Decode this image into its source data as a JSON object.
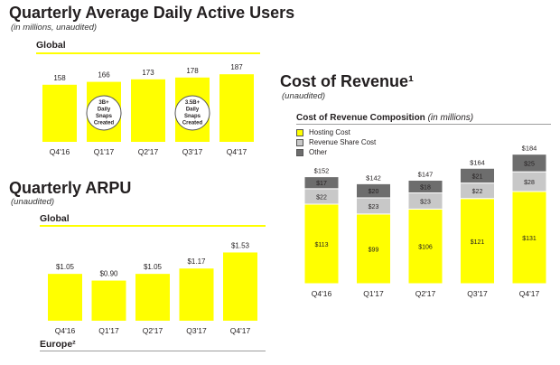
{
  "dau": {
    "title": "Quarterly Average Daily Active Users",
    "subtitle": "(in millions, unaudited)",
    "section": "Global"
  },
  "arpu": {
    "title": "Quarterly ARPU",
    "subtitle": "(unaudited)",
    "section": "Global",
    "section2": "Europe²"
  },
  "cor": {
    "title": "Cost of Revenue¹",
    "subtitle": "(unaudited)",
    "section": "Cost of Revenue Composition",
    "section_units": " (in millions)"
  },
  "colors": {
    "yellow": "#ffff00",
    "light_gray": "#c8c8c8",
    "dark_gray": "#6d6d6d",
    "rule_gray": "#9e9e9e"
  },
  "chart_data": [
    {
      "id": "dau",
      "type": "bar",
      "categories": [
        "Q4'16",
        "Q1'17",
        "Q2'17",
        "Q3'17",
        "Q4'17"
      ],
      "values": [
        158,
        166,
        173,
        178,
        187
      ],
      "labels": [
        "158",
        "166",
        "173",
        "178",
        "187"
      ],
      "annotations": [
        {
          "category": "Q1'17",
          "lines": [
            "3B+",
            "Daily",
            "Snaps",
            "Created"
          ]
        },
        {
          "category": "Q3'17",
          "lines": [
            "3.5B+",
            "Daily",
            "Snaps",
            "Created"
          ]
        }
      ],
      "ylim": [
        0,
        200
      ]
    },
    {
      "id": "arpu",
      "type": "bar",
      "categories": [
        "Q4'16",
        "Q1'17",
        "Q2'17",
        "Q3'17",
        "Q4'17"
      ],
      "values": [
        1.05,
        0.9,
        1.05,
        1.17,
        1.53
      ],
      "labels": [
        "$1.05",
        "$0.90",
        "$1.05",
        "$1.17",
        "$1.53"
      ],
      "ylim": [
        0,
        1.6
      ]
    },
    {
      "id": "cor",
      "type": "bar",
      "stacked": true,
      "categories": [
        "Q4'16",
        "Q1'17",
        "Q2'17",
        "Q3'17",
        "Q4'17"
      ],
      "series": [
        {
          "name": "Hosting Cost",
          "values": [
            113,
            99,
            106,
            121,
            131
          ],
          "labels": [
            "$113",
            "$99",
            "$106",
            "$121",
            "$131"
          ],
          "color": "#ffff00"
        },
        {
          "name": "Revenue Share Cost",
          "values": [
            22,
            23,
            23,
            22,
            28
          ],
          "labels": [
            "$22",
            "$23",
            "$23",
            "$22",
            "$28"
          ],
          "color": "#c8c8c8"
        },
        {
          "name": "Other",
          "values": [
            17,
            20,
            18,
            21,
            25
          ],
          "labels": [
            "$17",
            "$20",
            "$18",
            "$21",
            "$25"
          ],
          "color": "#6d6d6d"
        }
      ],
      "totals": [
        "$152",
        "$142",
        "$147",
        "$164",
        "$184"
      ],
      "legend_position": "top-left",
      "ylim": [
        0,
        190
      ]
    }
  ]
}
